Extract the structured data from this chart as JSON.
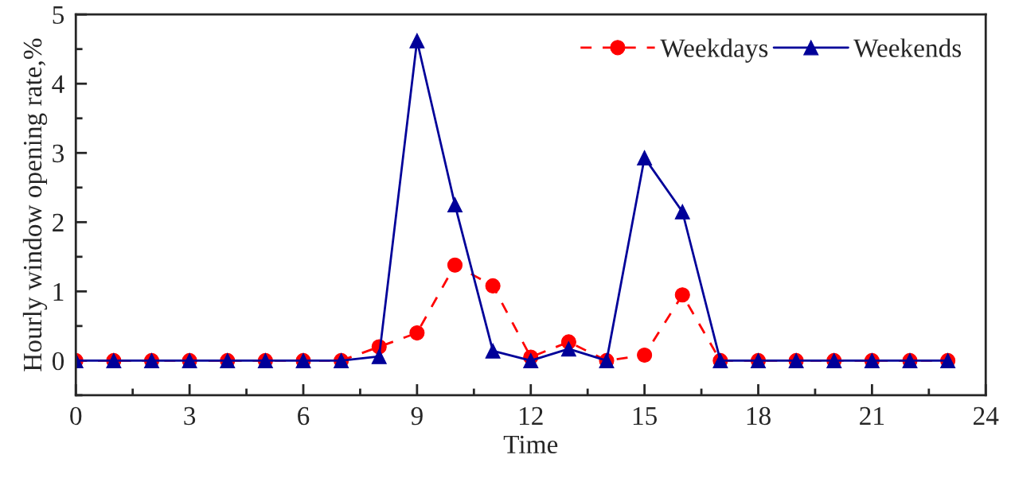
{
  "chart_data": {
    "type": "line",
    "xlabel": "Time",
    "ylabel": "Hourly window opening rate,%",
    "x": [
      0,
      1,
      2,
      3,
      4,
      5,
      6,
      7,
      8,
      9,
      10,
      11,
      12,
      13,
      14,
      15,
      16,
      17,
      18,
      19,
      20,
      21,
      22,
      23
    ],
    "series": [
      {
        "name": "Weekdays",
        "color": "#ff0000",
        "marker": "circle",
        "line_style": "dashed",
        "values": [
          0,
          0,
          0,
          0,
          0,
          0,
          0,
          0,
          0.2,
          0.4,
          1.38,
          1.08,
          0.05,
          0.27,
          0,
          0.08,
          0.95,
          0,
          0,
          0,
          0,
          0,
          0,
          0
        ]
      },
      {
        "name": "Weekends",
        "color": "#000099",
        "marker": "triangle",
        "line_style": "solid",
        "values": [
          0,
          0,
          0,
          0,
          0,
          0,
          0,
          0,
          0.06,
          4.62,
          2.25,
          0.14,
          0,
          0.17,
          0,
          2.93,
          2.15,
          0,
          0,
          0,
          0,
          0,
          0,
          0
        ]
      }
    ],
    "xlim": [
      0,
      24
    ],
    "xticks": [
      0,
      3,
      6,
      9,
      12,
      15,
      18,
      21,
      24
    ],
    "ylim": [
      -0.5,
      5
    ],
    "yticks": [
      0,
      1,
      2,
      3,
      4,
      5
    ],
    "grid": false,
    "legend": "top right"
  }
}
